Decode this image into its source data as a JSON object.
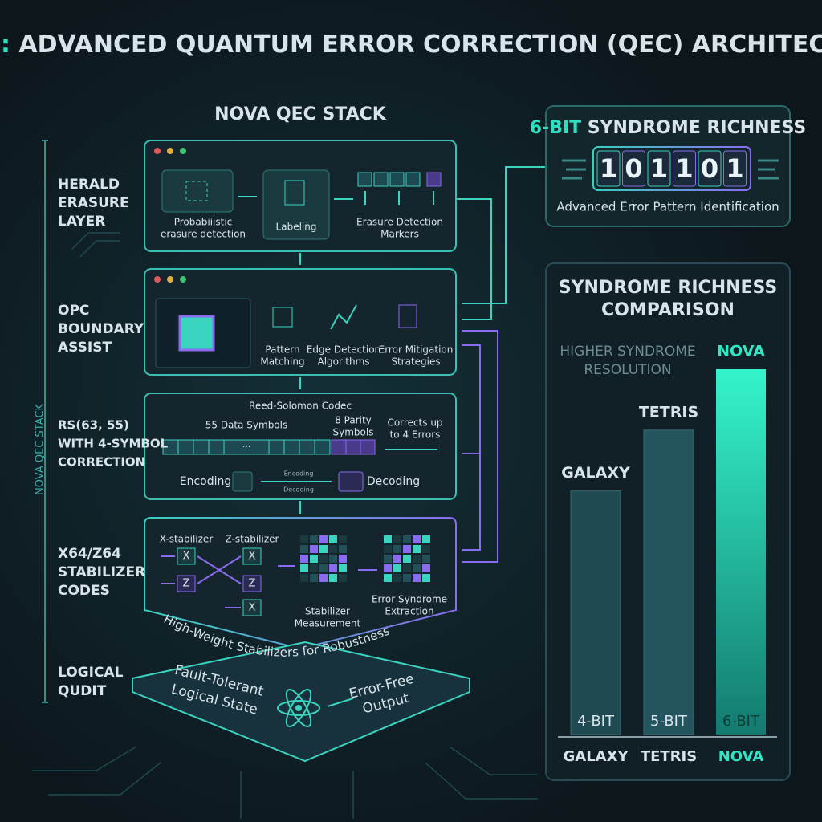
{
  "title": {
    "accent": "NOVA:",
    "rest": "ADVANCED QUANTUM ERROR CORRECTION (QEC) ARCHITECTURE"
  },
  "stack": {
    "heading": "NOVA QEC STACK",
    "side_label": "NOVA QEC STACK",
    "herald": {
      "label": [
        "HERALD",
        "ERASURE",
        "LAYER"
      ],
      "detection": [
        "Probabiiistic",
        "erasure detection"
      ],
      "labeling": "Labeling",
      "markers": [
        "Erasure Detection",
        "Markers"
      ]
    },
    "opc": {
      "label": [
        "OPC",
        "BOUNDARY",
        "ASSIST"
      ],
      "pattern": [
        "Pattern",
        "Matching"
      ],
      "edge": [
        "Edge Detection",
        "Algorithms"
      ],
      "mitigation": [
        "Error Mitigation",
        "Strategies"
      ]
    },
    "rs": {
      "label": [
        "RS(63, 55)",
        "WITH 4-SYMBOL",
        "CORRECTION"
      ],
      "codec": "Reed-Solomon Codec",
      "data_symbols": "55 Data Symbols",
      "parity_symbols": [
        "8 Parity",
        "Symbols"
      ],
      "corrects": [
        "Corrects up",
        "to 4 Errors"
      ],
      "ellipsis": "···",
      "encoding": "Encoding",
      "decoding": "Decoding"
    },
    "stabilizer": {
      "label": [
        "X64/Z64",
        "STABILIZER",
        "CODES"
      ],
      "x_stabilizer": "X-stabilizer",
      "z_stabilizer": "Z-stabilizer",
      "ops": [
        "X",
        "Z",
        "X",
        "Z",
        "X"
      ],
      "measurement": [
        "Stabilizer",
        "Measurement"
      ],
      "extraction": [
        "Error Syndrome",
        "Extraction"
      ],
      "banner": "High-Weight Stabilizers for Robustness"
    },
    "qudit": {
      "label": [
        "LOGICAL",
        "QUDIT"
      ],
      "state": [
        "Fault-Tolerant",
        "Logical State"
      ],
      "output": [
        "Error-Free",
        "Output"
      ]
    }
  },
  "syndrome": {
    "title_accent": "6-BIT",
    "title_rest": "SYNDROME RICHNESS",
    "bits": [
      "1",
      "0",
      "1",
      "1",
      "0",
      "1"
    ],
    "caption": "Advanced Error Pattern Identification"
  },
  "chart_data": {
    "type": "bar",
    "title": [
      "SYNDROME RICHNESS",
      "COMPARISON"
    ],
    "annotation": [
      "HIGHER SYNDROME",
      "RESOLUTION"
    ],
    "categories": [
      "GALAXY",
      "TETRIS",
      "NOVA"
    ],
    "values": [
      4,
      5,
      6
    ],
    "value_labels": [
      "4-BIT",
      "5-BIT",
      "6-BIT"
    ],
    "colors": [
      "#1f4a52",
      "#24555e",
      "#2de8c4"
    ],
    "highlight": "NOVA"
  }
}
